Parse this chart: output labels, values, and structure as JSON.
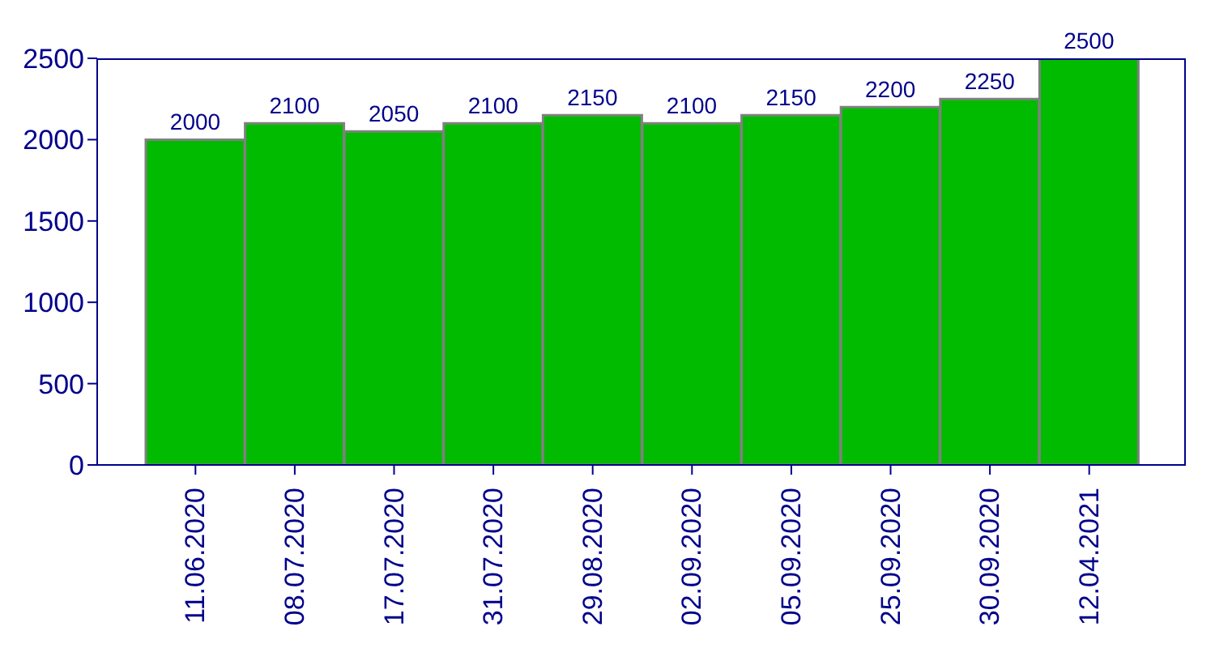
{
  "chart_data": {
    "type": "bar",
    "categories": [
      "11.06.2020",
      "08.07.2020",
      "17.07.2020",
      "31.07.2020",
      "29.08.2020",
      "02.09.2020",
      "05.09.2020",
      "25.09.2020",
      "30.09.2020",
      "12.04.2021"
    ],
    "values": [
      2000,
      2100,
      2050,
      2100,
      2150,
      2100,
      2150,
      2200,
      2250,
      2500
    ],
    "color": "#00bb00",
    "ylim": [
      0,
      2500
    ],
    "yticks": [
      0,
      500,
      1000,
      1500,
      2000,
      2500
    ],
    "grid": false,
    "data_labels": true
  }
}
